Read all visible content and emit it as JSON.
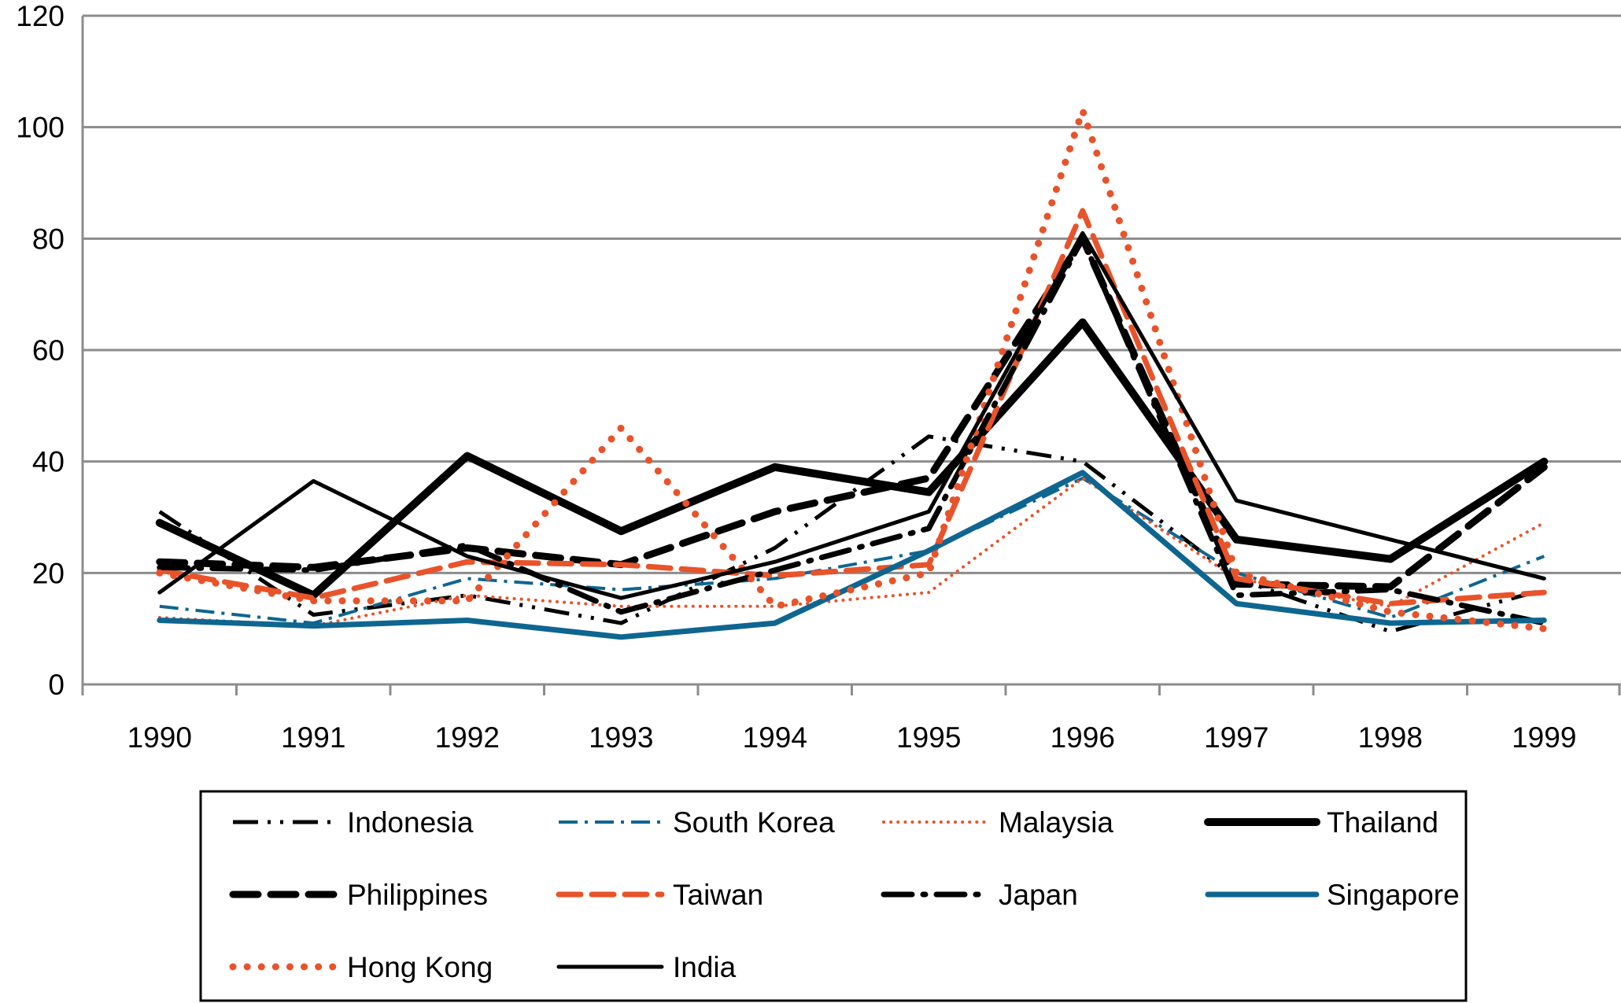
{
  "chart_data": {
    "type": "line",
    "title": "",
    "xlabel": "",
    "ylabel": "",
    "categories": [
      "1990",
      "1991",
      "1992",
      "1993",
      "1994",
      "1995",
      "1996",
      "1997",
      "1998",
      "1999"
    ],
    "ylim": [
      0,
      120
    ],
    "yticks": [
      0,
      20,
      40,
      60,
      80,
      100,
      120
    ],
    "grid": true,
    "legend_position": "bottom",
    "series": [
      {
        "name": "Indonesia",
        "color": "#000000",
        "style": "dash-dot-dot",
        "values": [
          31,
          12.5,
          16,
          11,
          24.5,
          44.5,
          40,
          19,
          9.5,
          17
        ]
      },
      {
        "name": "South Korea",
        "color": "#0e6690",
        "style": "dash-dot-thin",
        "values": [
          14,
          11,
          19,
          17,
          19,
          24,
          37,
          20,
          12,
          23
        ]
      },
      {
        "name": "Malaysia",
        "color": "#e8532a",
        "style": "dotted-thin",
        "values": [
          12,
          10.5,
          16,
          14,
          14,
          16.5,
          37,
          19,
          14,
          29
        ]
      },
      {
        "name": "Thailand",
        "color": "#000000",
        "style": "solid-thick",
        "values": [
          29,
          16,
          41,
          27.5,
          39,
          34.5,
          65,
          26,
          22.5,
          40
        ]
      },
      {
        "name": "Philippines",
        "color": "#000000",
        "style": "dashed-thick",
        "values": [
          22,
          21,
          24.5,
          21.5,
          31,
          37,
          80,
          18,
          17.5,
          39
        ]
      },
      {
        "name": "Taiwan",
        "color": "#e8532a",
        "style": "dashed",
        "values": [
          20.5,
          15.5,
          22,
          21.5,
          19.5,
          21.5,
          85,
          19,
          14.5,
          16.5
        ]
      },
      {
        "name": "Japan",
        "color": "#000000",
        "style": "dash-dot-thick",
        "values": [
          21,
          20.5,
          25,
          13,
          20.5,
          28,
          80,
          16,
          17,
          11
        ]
      },
      {
        "name": "Singapore",
        "color": "#0e6690",
        "style": "solid",
        "values": [
          11.5,
          10.5,
          11.5,
          8.5,
          11,
          24,
          38,
          14.5,
          11,
          11.5
        ]
      },
      {
        "name": "Hong Kong",
        "color": "#e8532a",
        "style": "dotted-thick",
        "values": [
          20,
          15,
          15,
          46,
          14,
          20,
          103,
          20,
          13,
          10
        ]
      },
      {
        "name": "India",
        "color": "#000000",
        "style": "solid-thin",
        "values": [
          16.5,
          36.5,
          23,
          15.5,
          22,
          31,
          81,
          33,
          26,
          19
        ]
      }
    ]
  }
}
